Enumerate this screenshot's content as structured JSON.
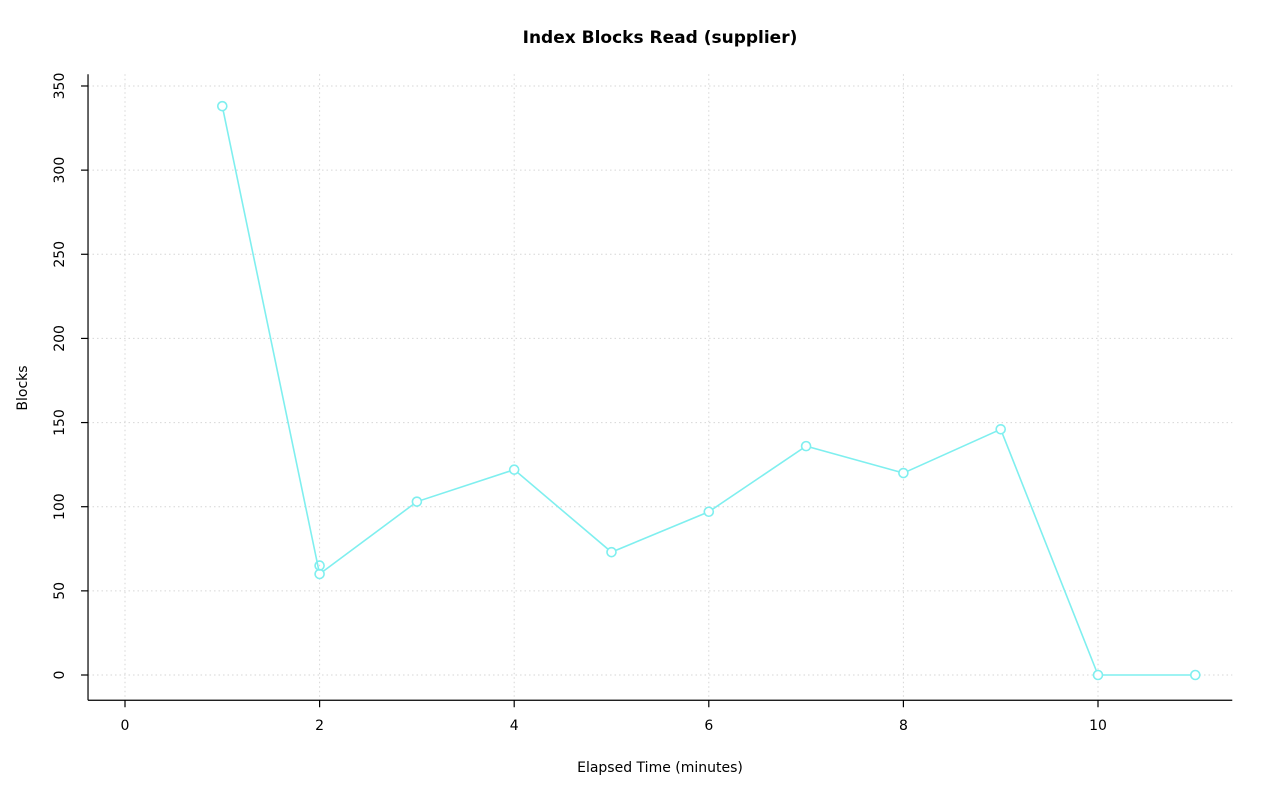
{
  "page": {
    "background": "#ffffff"
  },
  "chart_data": {
    "type": "line",
    "title": "Index Blocks Read (supplier)",
    "xlabel": "Elapsed Time (minutes)",
    "ylabel": "Blocks",
    "x": [
      1,
      2,
      3,
      4,
      5,
      6,
      7,
      8,
      9,
      10,
      11
    ],
    "values": [
      338,
      60,
      103,
      122,
      73,
      97,
      136,
      120,
      146,
      0,
      0
    ],
    "extra_points": [
      {
        "x": 2,
        "y": 65
      }
    ],
    "xticks": [
      0,
      2,
      4,
      6,
      8,
      10
    ],
    "yticks": [
      0,
      50,
      100,
      150,
      200,
      250,
      300,
      350
    ],
    "xlim": [
      -0.38,
      11.38
    ],
    "ylim": [
      -15,
      357
    ],
    "grid": "dotted",
    "legend": "none",
    "line_color": "#7FEFEF",
    "marker": "open-circle",
    "marker_fill": "#ffffff",
    "grid_color": "#d6d6d6",
    "axis_color": "#000000"
  }
}
